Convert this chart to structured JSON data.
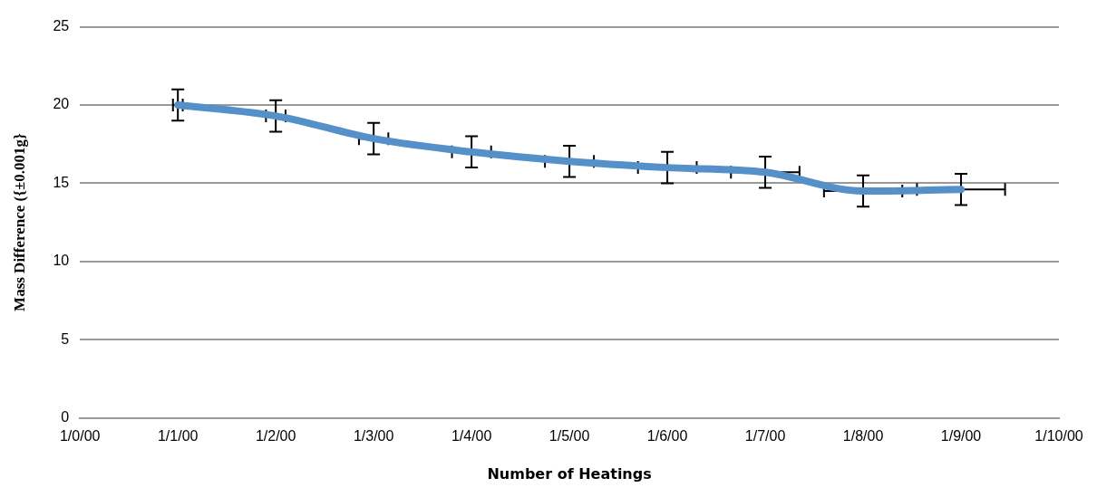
{
  "chart_data": {
    "type": "line",
    "xlabel": "Number of Heatings",
    "ylabel": "Mass Difference ({±0.001g}",
    "x": [
      "2000-01-01",
      "2000-01-02",
      "2000-01-03",
      "2000-01-04",
      "2000-01-05",
      "2000-01-06",
      "2000-01-07",
      "2000-01-08",
      "2000-01-09"
    ],
    "series": [
      {
        "color": "#5590c8",
        "values": [
          20,
          19.3,
          17.85,
          17.0,
          16.4,
          16.0,
          15.7,
          14.5,
          14.6
        ],
        "errors": [
          1,
          1,
          1,
          1,
          1,
          1,
          1,
          1,
          1
        ],
        "xerrors": [
          0.05,
          0.1,
          0.15,
          0.2,
          0.25,
          0.3,
          0.35,
          0.4,
          0.45
        ]
      }
    ],
    "xlim": [
      "1999-12-31",
      "2000-01-10"
    ],
    "xticks": [
      {
        "value": "1999-12-31",
        "label": "1/0/00"
      },
      {
        "value": "2000-01-01",
        "label": "1/1/00"
      },
      {
        "value": "2000-01-02",
        "label": "1/2/00"
      },
      {
        "value": "2000-01-03",
        "label": "1/3/00"
      },
      {
        "value": "2000-01-04",
        "label": "1/4/00"
      },
      {
        "value": "2000-01-05",
        "label": "1/5/00"
      },
      {
        "value": "2000-01-06",
        "label": "1/6/00"
      },
      {
        "value": "2000-01-07",
        "label": "1/7/00"
      },
      {
        "value": "2000-01-08",
        "label": "1/8/00"
      },
      {
        "value": "2000-01-09",
        "label": "1/9/00"
      },
      {
        "value": "2000-01-10",
        "label": "1/10/00"
      }
    ],
    "ylim": [
      0,
      25
    ],
    "yticks": [
      0,
      5,
      10,
      15,
      20,
      25
    ],
    "grid": "y",
    "legend": false,
    "marker": "none",
    "line_style": "solid"
  }
}
